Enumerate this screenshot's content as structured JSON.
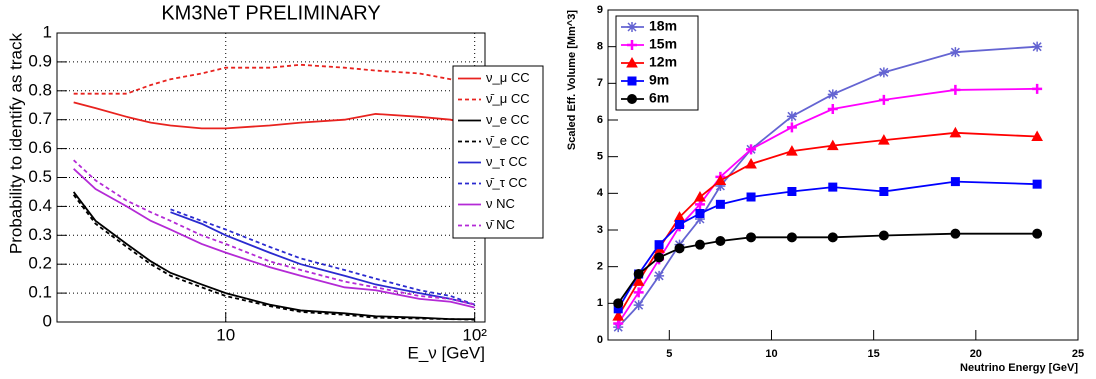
{
  "chart_data": [
    {
      "type": "line",
      "title": "KM3NeT PRELIMINARY",
      "ylabel": "Probability to identify as track",
      "xlabel": "E_ν [GeV]",
      "xscale": "log",
      "xlim": [
        2.1,
        110
      ],
      "ylim": [
        0,
        1
      ],
      "xticks": [
        10,
        {
          "value": 100,
          "label": "10²"
        }
      ],
      "yticks": [
        0,
        0.1,
        0.2,
        0.3,
        0.4,
        0.5,
        0.6,
        0.7,
        0.8,
        0.9,
        1
      ],
      "grid": true,
      "legend": "upper right",
      "x": [
        2.45,
        3,
        4,
        5,
        6,
        8,
        10,
        15,
        20,
        30,
        40,
        60,
        80,
        100
      ],
      "series": [
        {
          "name": "ν_μ CC",
          "color": "#e8231f",
          "dash": false,
          "values": [
            0.76,
            0.74,
            0.71,
            0.69,
            0.68,
            0.67,
            0.67,
            0.68,
            0.69,
            0.7,
            0.72,
            0.71,
            0.7,
            0.68
          ]
        },
        {
          "name": "ν̄_μ CC",
          "color": "#e8231f",
          "dash": true,
          "values": [
            0.79,
            0.79,
            0.79,
            0.82,
            0.84,
            0.86,
            0.88,
            0.88,
            0.89,
            0.88,
            0.87,
            0.86,
            0.84,
            0.82
          ]
        },
        {
          "name": "ν_e CC",
          "color": "#000000",
          "dash": false,
          "values": [
            0.45,
            0.35,
            0.27,
            0.21,
            0.17,
            0.13,
            0.1,
            0.06,
            0.04,
            0.03,
            0.02,
            0.015,
            0.01,
            0.01
          ]
        },
        {
          "name": "ν̄_e CC",
          "color": "#000000",
          "dash": true,
          "values": [
            0.44,
            0.34,
            0.26,
            0.2,
            0.16,
            0.12,
            0.09,
            0.055,
            0.035,
            0.025,
            0.015,
            0.012,
            0.01,
            0.008
          ]
        },
        {
          "name": "ν_τ CC",
          "color": "#2a2ad0",
          "dash": false,
          "values": [
            null,
            null,
            null,
            null,
            0.38,
            0.34,
            0.3,
            0.24,
            0.2,
            0.16,
            0.13,
            0.1,
            0.08,
            0.06
          ]
        },
        {
          "name": "ν̄_τ CC",
          "color": "#2a2ad0",
          "dash": true,
          "values": [
            null,
            null,
            null,
            null,
            0.39,
            0.35,
            0.32,
            0.26,
            0.22,
            0.18,
            0.15,
            0.11,
            0.09,
            0.06
          ]
        },
        {
          "name": "ν NC",
          "color": "#b42ad6",
          "dash": false,
          "values": [
            0.53,
            0.46,
            0.4,
            0.35,
            0.32,
            0.27,
            0.24,
            0.19,
            0.16,
            0.12,
            0.11,
            0.08,
            0.07,
            0.05
          ]
        },
        {
          "name": "ν̄ NC",
          "color": "#b42ad6",
          "dash": true,
          "values": [
            0.56,
            0.49,
            0.42,
            0.38,
            0.35,
            0.3,
            0.27,
            0.21,
            0.18,
            0.14,
            0.12,
            0.09,
            0.08,
            0.06
          ]
        }
      ]
    },
    {
      "type": "line",
      "ylabel": "Scaled Eff. Volume [Mm^3]",
      "xlabel": "Neutrino Energy [GeV]",
      "xscale": "linear",
      "xlim": [
        2,
        25
      ],
      "ylim": [
        0,
        9
      ],
      "xticks": [
        5,
        10,
        15,
        20,
        25
      ],
      "yticks": [
        0,
        1,
        2,
        3,
        4,
        5,
        6,
        7,
        8,
        9
      ],
      "grid": false,
      "legend": "upper left",
      "x": [
        2.5,
        3.5,
        4.5,
        5.5,
        6.5,
        7.5,
        9,
        11,
        13,
        15.5,
        19,
        23
      ],
      "series": [
        {
          "name": "18m",
          "color": "#6464d2",
          "marker": "star",
          "values": [
            0.35,
            0.95,
            1.75,
            2.6,
            3.3,
            4.2,
            5.2,
            6.1,
            6.7,
            7.3,
            7.85,
            8.0
          ]
        },
        {
          "name": "15m",
          "color": "#ff00ff",
          "marker": "plus",
          "values": [
            0.45,
            1.3,
            2.2,
            3.1,
            3.7,
            4.45,
            5.2,
            5.8,
            6.3,
            6.55,
            6.82,
            6.85
          ]
        },
        {
          "name": "12m",
          "color": "#ff0000",
          "marker": "triangle",
          "values": [
            0.65,
            1.6,
            2.5,
            3.35,
            3.9,
            4.35,
            4.8,
            5.15,
            5.3,
            5.45,
            5.65,
            5.55
          ]
        },
        {
          "name": "9m",
          "color": "#0000ff",
          "marker": "square",
          "values": [
            0.85,
            1.8,
            2.6,
            3.15,
            3.45,
            3.7,
            3.9,
            4.05,
            4.17,
            4.05,
            4.32,
            4.25
          ]
        },
        {
          "name": "6m",
          "color": "#000000",
          "marker": "circle",
          "values": [
            1.0,
            1.8,
            2.25,
            2.5,
            2.6,
            2.7,
            2.8,
            2.8,
            2.8,
            2.85,
            2.9,
            2.9
          ]
        }
      ]
    }
  ]
}
